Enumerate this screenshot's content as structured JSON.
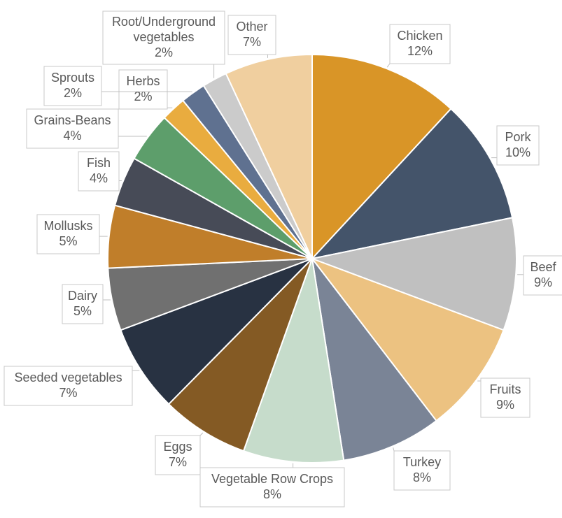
{
  "chart_data": {
    "type": "pie",
    "title": "",
    "start_angle_deg": 0,
    "direction": "clockwise",
    "slices": [
      {
        "label": "Chicken",
        "value": 12,
        "value_label": "12%",
        "color": "#D99527"
      },
      {
        "label": "Pork",
        "value": 10,
        "value_label": "10%",
        "color": "#44546A"
      },
      {
        "label": "Beef",
        "value": 9,
        "value_label": "9%",
        "color": "#C0C0C0"
      },
      {
        "label": "Fruits",
        "value": 9,
        "value_label": "9%",
        "color": "#ECC281"
      },
      {
        "label": "Turkey",
        "value": 8,
        "value_label": "8%",
        "color": "#7A8496"
      },
      {
        "label": "Vegetable Row Crops",
        "value": 8,
        "value_label": "8%",
        "color": "#C6DCCB"
      },
      {
        "label": "Eggs",
        "value": 7,
        "value_label": "7%",
        "color": "#845A24"
      },
      {
        "label": "Seeded vegetables",
        "value": 7,
        "value_label": "7%",
        "color": "#283242"
      },
      {
        "label": "Dairy",
        "value": 5,
        "value_label": "5%",
        "color": "#707070"
      },
      {
        "label": "Mollusks",
        "value": 5,
        "value_label": "5%",
        "color": "#C07E2A"
      },
      {
        "label": "Fish",
        "value": 4,
        "value_label": "4%",
        "color": "#474B57"
      },
      {
        "label": "Grains-Beans",
        "value": 4,
        "value_label": "4%",
        "color": "#5D9E6B"
      },
      {
        "label": "Herbs",
        "value": 2,
        "value_label": "2%",
        "color": "#E9AC3F"
      },
      {
        "label": "Sprouts",
        "value": 2,
        "value_label": "2%",
        "color": "#5F7190"
      },
      {
        "label": "Root/Underground vegetables",
        "value": 2,
        "value_label": "2%",
        "color": "#CBCBCB"
      },
      {
        "label": "Other",
        "value": 7,
        "value_label": "7%",
        "color": "#F0CF9F"
      }
    ]
  }
}
